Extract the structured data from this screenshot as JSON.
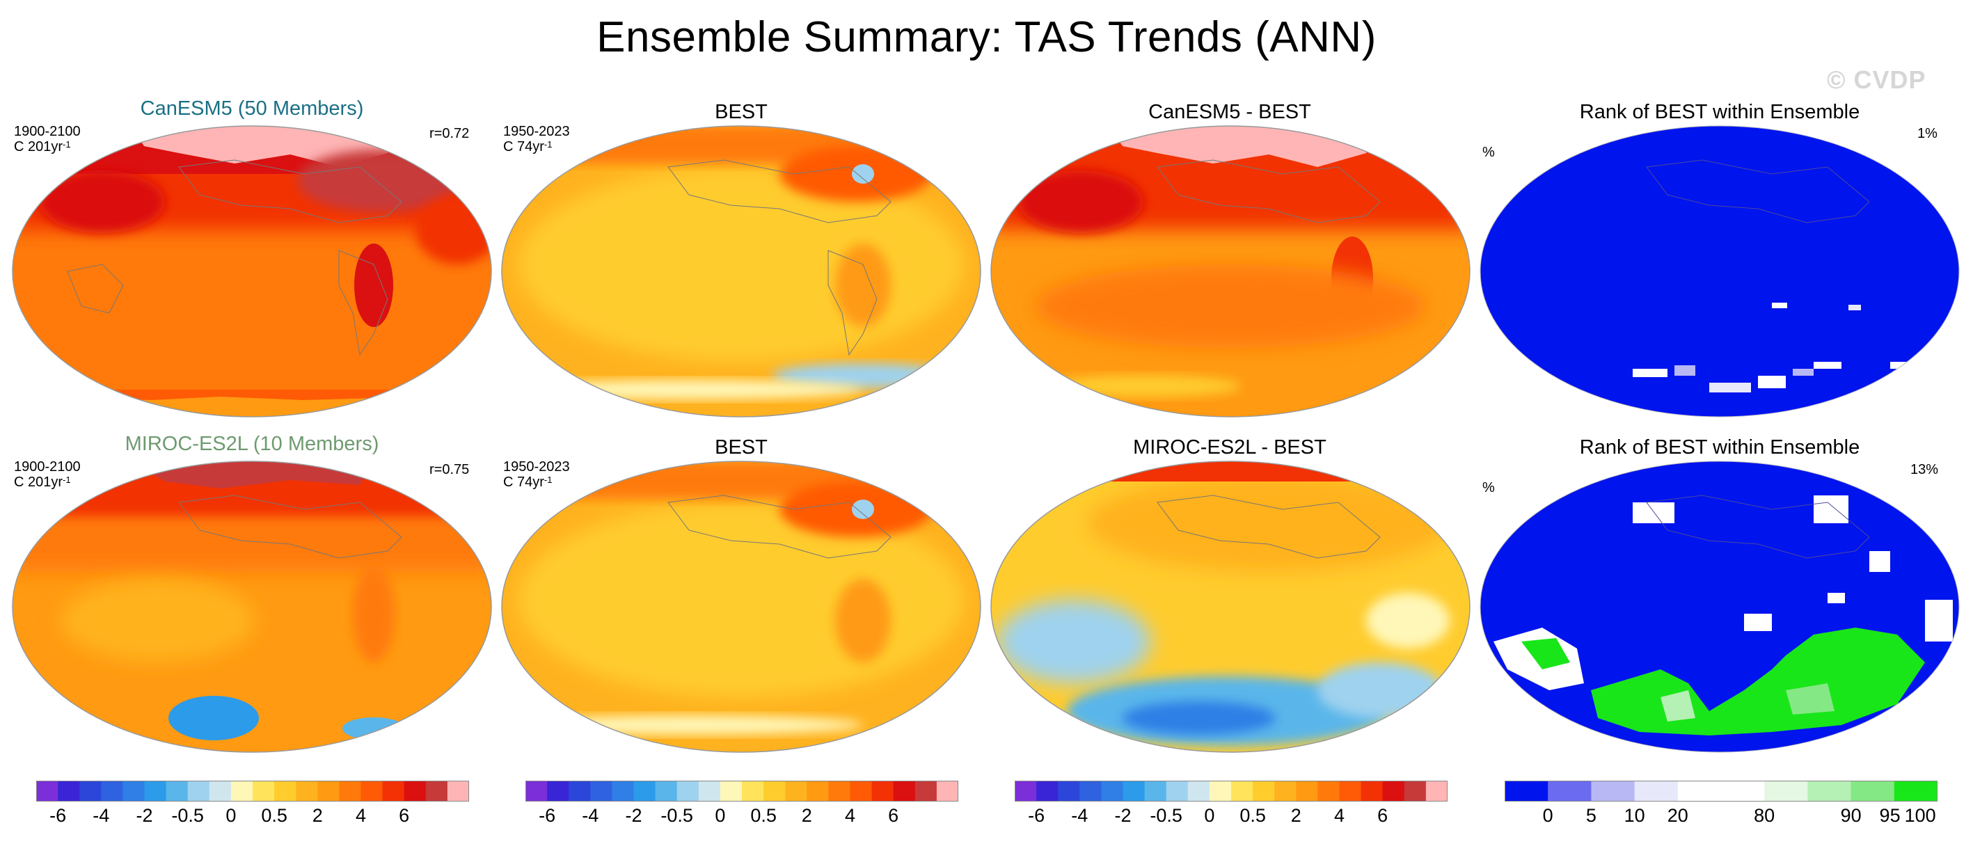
{
  "title": "Ensemble Summary: TAS Trends (ANN)",
  "watermark": "© CVDP",
  "rows": [
    {
      "model_title": "CanESM5 (50 Members)",
      "model_color": "#1a6f86",
      "model_period": "1900-2100",
      "model_units": "C 201yr",
      "model_units_exp": "-1",
      "corr": "r=0.72",
      "obs_title": "BEST",
      "obs_period": "1950-2023",
      "obs_units": "C 74yr",
      "obs_units_exp": "-1",
      "diff_title": "CanESM5 - BEST",
      "rank_title": "Rank of BEST within Ensemble",
      "rank_unit": "%",
      "rank_pct": "1%"
    },
    {
      "model_title": "MIROC-ES2L (10 Members)",
      "model_color": "#6e9a70",
      "model_period": "1900-2100",
      "model_units": "C 201yr",
      "model_units_exp": "-1",
      "corr": "r=0.75",
      "obs_title": "BEST",
      "obs_period": "1950-2023",
      "obs_units": "C 74yr",
      "obs_units_exp": "-1",
      "diff_title": "MIROC-ES2L - BEST",
      "rank_title": "Rank of BEST within Ensemble",
      "rank_unit": "%",
      "rank_pct": "13%"
    }
  ],
  "colorbar_trend": {
    "colors": [
      "#7b2fd8",
      "#3a25d6",
      "#2c46da",
      "#2f62e0",
      "#2f7fe6",
      "#2c9be9",
      "#5ab6ea",
      "#9fd2ee",
      "#cfe6ef",
      "#fff7b8",
      "#ffe35a",
      "#ffcc2e",
      "#ffb21f",
      "#ff9a12",
      "#ff7a0a",
      "#ff5a05",
      "#f23104",
      "#db1010",
      "#c73a3a",
      "#ffb5b5"
    ],
    "labels": [
      "-6",
      "-4",
      "-2",
      "-0.5",
      "0",
      "0.5",
      "2",
      "4",
      "6"
    ]
  },
  "colorbar_rank": {
    "colors": [
      "#0014ee",
      "#6b6bf0",
      "#b8b8f5",
      "#e8e8fb",
      "#ffffff",
      "#ffffff",
      "#e4f8e4",
      "#b5f0b5",
      "#84e884",
      "#19e619"
    ],
    "labels": [
      "0",
      "5",
      "10",
      "20",
      "80",
      "90",
      "95",
      "100"
    ]
  }
}
